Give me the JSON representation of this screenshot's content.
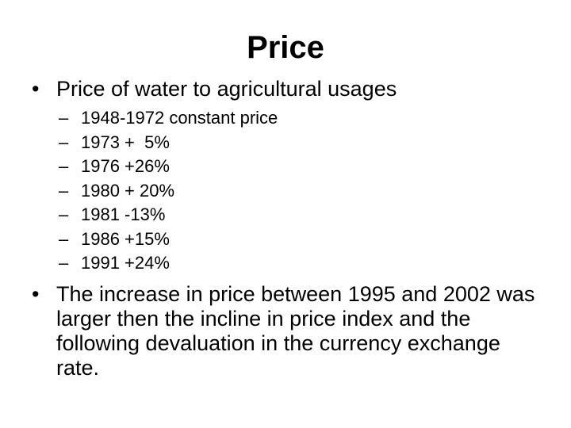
{
  "slide": {
    "title": "Price",
    "bullet_marker": "•",
    "dash_marker": "–",
    "bullets": [
      {
        "text": "Price of water to agricultural usages",
        "sub_items": [
          "1948-1972 constant price",
          "1973 +  5%",
          "1976 +26%",
          "1980 + 20%",
          "1981 -13%",
          "1986 +15%",
          "1991 +24%"
        ]
      },
      {
        "text": "The increase in price between 1995 and 2002 was larger then the incline in price index and the following devaluation in the currency exchange rate."
      }
    ]
  }
}
